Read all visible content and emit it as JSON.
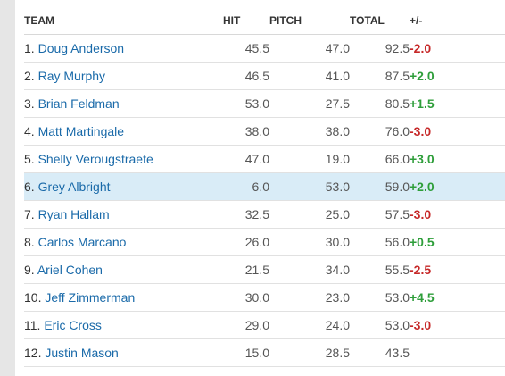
{
  "columns": {
    "team": "TEAM",
    "hit": "HIT",
    "pitch": "PITCH",
    "total": "TOTAL",
    "plus_minus": "+/-"
  },
  "colors": {
    "link": "#1a6aa9",
    "negative": "#c62828",
    "positive": "#2e9e3a",
    "highlight_row": "#d9ecf7"
  },
  "rows": [
    {
      "rank": "1.",
      "team": "Doug Anderson",
      "hit": "45.5",
      "pitch": "47.0",
      "total": "92.5",
      "pm": "-2.0"
    },
    {
      "rank": "2.",
      "team": "Ray Murphy",
      "hit": "46.5",
      "pitch": "41.0",
      "total": "87.5",
      "pm": "+2.0"
    },
    {
      "rank": "3.",
      "team": "Brian Feldman",
      "hit": "53.0",
      "pitch": "27.5",
      "total": "80.5",
      "pm": "+1.5"
    },
    {
      "rank": "4.",
      "team": "Matt Martingale",
      "hit": "38.0",
      "pitch": "38.0",
      "total": "76.0",
      "pm": "-3.0"
    },
    {
      "rank": "5.",
      "team": "Shelly Verougstraete",
      "hit": "47.0",
      "pitch": "19.0",
      "total": "66.0",
      "pm": "+3.0"
    },
    {
      "rank": "6.",
      "team": "Grey Albright",
      "hit": "6.0",
      "pitch": "53.0",
      "total": "59.0",
      "pm": "+2.0",
      "highlighted": true
    },
    {
      "rank": "7.",
      "team": "Ryan Hallam",
      "hit": "32.5",
      "pitch": "25.0",
      "total": "57.5",
      "pm": "-3.0"
    },
    {
      "rank": "8.",
      "team": "Carlos Marcano",
      "hit": "26.0",
      "pitch": "30.0",
      "total": "56.0",
      "pm": "+0.5"
    },
    {
      "rank": "9.",
      "team": "Ariel Cohen",
      "hit": "21.5",
      "pitch": "34.0",
      "total": "55.5",
      "pm": "-2.5"
    },
    {
      "rank": "10.",
      "team": "Jeff Zimmerman",
      "hit": "30.0",
      "pitch": "23.0",
      "total": "53.0",
      "pm": "+4.5"
    },
    {
      "rank": "11.",
      "team": "Eric Cross",
      "hit": "29.0",
      "pitch": "24.0",
      "total": "53.0",
      "pm": "-3.0"
    },
    {
      "rank": "12.",
      "team": "Justin Mason",
      "hit": "15.0",
      "pitch": "28.5",
      "total": "43.5",
      "pm": ""
    }
  ]
}
